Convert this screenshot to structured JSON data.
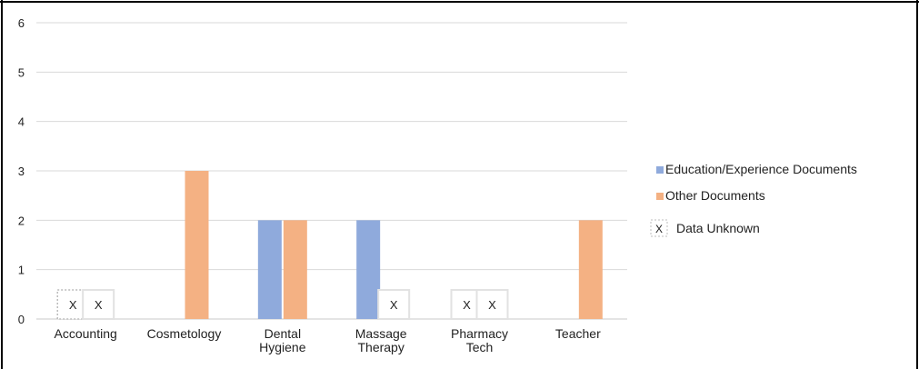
{
  "chart_data": {
    "type": "bar",
    "title": "",
    "xlabel": "",
    "ylabel": "",
    "ylim": [
      0,
      6
    ],
    "y_ticks": [
      "0",
      "1",
      "2",
      "3",
      "4",
      "5",
      "6"
    ],
    "grid": true,
    "legend_position": "right",
    "categories": [
      [
        "Accounting"
      ],
      [
        "Cosmetology"
      ],
      [
        "Dental",
        "Hygiene"
      ],
      [
        "Massage",
        "Therapy"
      ],
      [
        "Pharmacy",
        "Tech"
      ],
      [
        "Teacher"
      ]
    ],
    "series": [
      {
        "name": "Education/Experience Documents",
        "color": "#8FAADC",
        "values": [
          null,
          0,
          2,
          2,
          null,
          0
        ]
      },
      {
        "name": "Other Documents",
        "color": "#F4B183",
        "values": [
          null,
          3,
          2,
          null,
          null,
          2
        ]
      }
    ],
    "unknown_marker": {
      "glyph": "X",
      "label": "Data Unknown"
    }
  }
}
